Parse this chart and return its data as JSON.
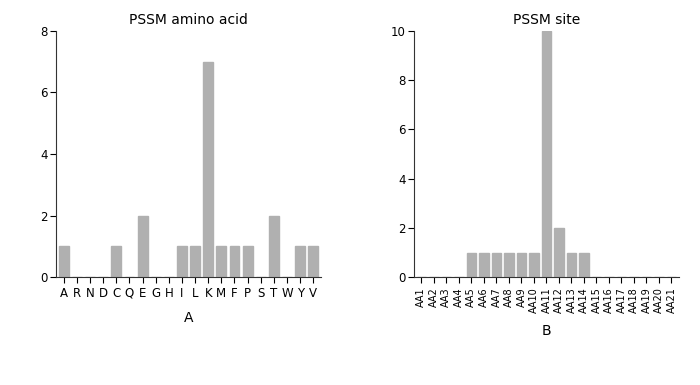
{
  "panel_A": {
    "title": "PSSM amino acid",
    "xlabel": "A",
    "categories": [
      "A",
      "R",
      "N",
      "D",
      "C",
      "Q",
      "E",
      "G",
      "H",
      "I",
      "L",
      "K",
      "M",
      "F",
      "P",
      "S",
      "T",
      "W",
      "Y",
      "V"
    ],
    "values": [
      1,
      0,
      0,
      0,
      1,
      0,
      2,
      0,
      0,
      1,
      1,
      7,
      1,
      1,
      1,
      0,
      2,
      0,
      1,
      1
    ],
    "ylim": [
      0,
      8
    ],
    "yticks": [
      0,
      2,
      4,
      6,
      8
    ],
    "bar_color": "#b0b0b0"
  },
  "panel_B": {
    "title": "PSSM site",
    "xlabel": "B",
    "categories": [
      "AA1",
      "AA2",
      "AA3",
      "AA4",
      "AA5",
      "AA6",
      "AA7",
      "AA8",
      "AA9",
      "AA10",
      "AA11",
      "AA12",
      "AA13",
      "AA14",
      "AA15",
      "AA16",
      "AA17",
      "AA18",
      "AA19",
      "AA20",
      "AA21"
    ],
    "values": [
      0,
      0,
      0,
      0,
      1,
      1,
      1,
      1,
      1,
      1,
      10,
      2,
      1,
      1,
      0,
      0,
      0,
      0,
      0,
      0,
      0
    ],
    "ylim": [
      0,
      10
    ],
    "yticks": [
      0,
      2,
      4,
      6,
      8,
      10
    ],
    "bar_color": "#b0b0b0"
  },
  "background_color": "#ffffff",
  "fig_width": 7.0,
  "fig_height": 3.85,
  "dpi": 100
}
